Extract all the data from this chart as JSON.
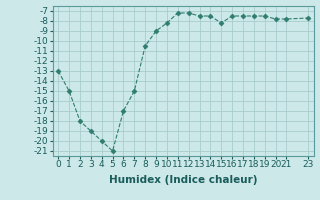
{
  "x": [
    0,
    1,
    2,
    3,
    4,
    5,
    6,
    7,
    8,
    9,
    10,
    11,
    12,
    13,
    14,
    15,
    16,
    17,
    18,
    19,
    20,
    21,
    23
  ],
  "y": [
    -13,
    -15,
    -18,
    -19,
    -20,
    -21,
    -17,
    -15,
    -10.5,
    -9,
    -8.2,
    -7.2,
    -7.2,
    -7.5,
    -7.5,
    -8.2,
    -7.5,
    -7.5,
    -7.5,
    -7.5,
    -7.8,
    -7.8,
    -7.7
  ],
  "line_color": "#2e7d6e",
  "marker": "D",
  "marker_size": 2.5,
  "bg_color": "#cce8e8",
  "grid_color": "#aacccc",
  "xlabel": "Humidex (Indice chaleur)",
  "xlim": [
    -0.5,
    23.5
  ],
  "ylim": [
    -21.5,
    -6.5
  ],
  "xticks": [
    0,
    1,
    2,
    3,
    4,
    5,
    6,
    7,
    8,
    9,
    10,
    11,
    12,
    13,
    14,
    15,
    16,
    17,
    18,
    19,
    20,
    21,
    23
  ],
  "yticks": [
    -7,
    -8,
    -9,
    -10,
    -11,
    -12,
    -13,
    -14,
    -15,
    -16,
    -17,
    -18,
    -19,
    -20,
    -21
  ],
  "tick_fontsize": 6.5,
  "xlabel_fontsize": 7.5
}
